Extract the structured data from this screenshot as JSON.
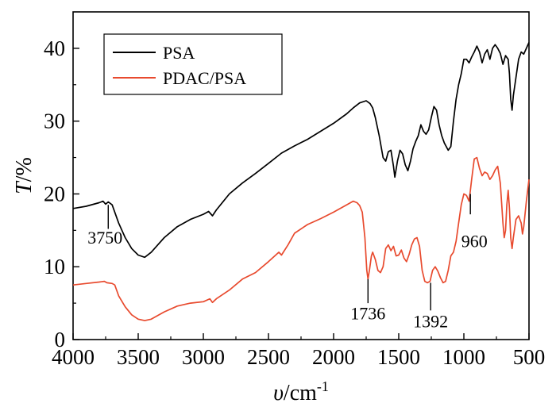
{
  "chart_data": {
    "type": "line",
    "xlabel_symbol": "υ",
    "xlabel_unit": "/cm",
    "xlabel_exp": "-1",
    "ylabel_symbol": "T",
    "ylabel_unit": "/%",
    "xlim": [
      4000,
      500
    ],
    "ylim": [
      0,
      45
    ],
    "xticks": [
      4000,
      3500,
      3000,
      2500,
      2000,
      1500,
      1000,
      500
    ],
    "yticks": [
      0,
      10,
      20,
      30,
      40
    ],
    "legend_position": "top-left",
    "grid": false,
    "series": [
      {
        "name": "PSA",
        "color": "#000000",
        "points": [
          [
            4000,
            18
          ],
          [
            3900,
            18.3
          ],
          [
            3800,
            18.8
          ],
          [
            3770,
            19
          ],
          [
            3750,
            18.6
          ],
          [
            3730,
            18.9
          ],
          [
            3700,
            18.5
          ],
          [
            3650,
            16
          ],
          [
            3600,
            14
          ],
          [
            3550,
            12.5
          ],
          [
            3500,
            11.6
          ],
          [
            3450,
            11.3
          ],
          [
            3400,
            12
          ],
          [
            3350,
            13
          ],
          [
            3300,
            14
          ],
          [
            3200,
            15.5
          ],
          [
            3100,
            16.5
          ],
          [
            3000,
            17.2
          ],
          [
            2960,
            17.6
          ],
          [
            2930,
            17
          ],
          [
            2900,
            17.8
          ],
          [
            2800,
            20
          ],
          [
            2700,
            21.5
          ],
          [
            2600,
            22.8
          ],
          [
            2500,
            24.2
          ],
          [
            2400,
            25.6
          ],
          [
            2300,
            26.6
          ],
          [
            2200,
            27.5
          ],
          [
            2100,
            28.6
          ],
          [
            2000,
            29.7
          ],
          [
            1900,
            31
          ],
          [
            1850,
            31.8
          ],
          [
            1800,
            32.5
          ],
          [
            1750,
            32.8
          ],
          [
            1720,
            32.4
          ],
          [
            1700,
            31.8
          ],
          [
            1680,
            30.5
          ],
          [
            1650,
            28
          ],
          [
            1620,
            25
          ],
          [
            1600,
            24.5
          ],
          [
            1580,
            25.8
          ],
          [
            1560,
            26
          ],
          [
            1540,
            23.8
          ],
          [
            1530,
            22.3
          ],
          [
            1510,
            24.5
          ],
          [
            1490,
            26
          ],
          [
            1470,
            25.5
          ],
          [
            1450,
            24
          ],
          [
            1430,
            23.2
          ],
          [
            1410,
            24.5
          ],
          [
            1390,
            26.2
          ],
          [
            1370,
            27.2
          ],
          [
            1350,
            28
          ],
          [
            1330,
            29.5
          ],
          [
            1310,
            28.6
          ],
          [
            1290,
            28.2
          ],
          [
            1270,
            28.8
          ],
          [
            1250,
            30.5
          ],
          [
            1230,
            32
          ],
          [
            1210,
            31.5
          ],
          [
            1190,
            29.5
          ],
          [
            1170,
            28
          ],
          [
            1150,
            27
          ],
          [
            1120,
            26
          ],
          [
            1100,
            26.5
          ],
          [
            1080,
            30
          ],
          [
            1060,
            33
          ],
          [
            1040,
            35
          ],
          [
            1020,
            36.5
          ],
          [
            1000,
            38.5
          ],
          [
            980,
            38.5
          ],
          [
            960,
            38
          ],
          [
            940,
            38.8
          ],
          [
            920,
            39.5
          ],
          [
            900,
            40.3
          ],
          [
            880,
            39.5
          ],
          [
            860,
            38
          ],
          [
            840,
            39.2
          ],
          [
            820,
            39.8
          ],
          [
            800,
            38.5
          ],
          [
            780,
            40
          ],
          [
            760,
            40.5
          ],
          [
            740,
            40
          ],
          [
            720,
            39.3
          ],
          [
            700,
            37.8
          ],
          [
            680,
            39
          ],
          [
            660,
            38.5
          ],
          [
            650,
            36.5
          ],
          [
            640,
            33
          ],
          [
            630,
            31.5
          ],
          [
            620,
            33.5
          ],
          [
            600,
            36
          ],
          [
            580,
            38.5
          ],
          [
            560,
            39.5
          ],
          [
            540,
            39.2
          ],
          [
            520,
            40
          ],
          [
            500,
            40.8
          ]
        ]
      },
      {
        "name": "PDAC/PSA",
        "color": "#e84a2e",
        "points": [
          [
            4000,
            7.5
          ],
          [
            3900,
            7.7
          ],
          [
            3800,
            7.9
          ],
          [
            3760,
            8
          ],
          [
            3740,
            7.8
          ],
          [
            3700,
            7.7
          ],
          [
            3680,
            7.5
          ],
          [
            3650,
            6
          ],
          [
            3600,
            4.5
          ],
          [
            3550,
            3.4
          ],
          [
            3500,
            2.8
          ],
          [
            3450,
            2.6
          ],
          [
            3400,
            2.8
          ],
          [
            3300,
            3.8
          ],
          [
            3200,
            4.6
          ],
          [
            3100,
            5
          ],
          [
            3000,
            5.2
          ],
          [
            2950,
            5.6
          ],
          [
            2930,
            5.1
          ],
          [
            2900,
            5.6
          ],
          [
            2800,
            6.8
          ],
          [
            2700,
            8.3
          ],
          [
            2600,
            9.2
          ],
          [
            2500,
            10.7
          ],
          [
            2420,
            12
          ],
          [
            2400,
            11.6
          ],
          [
            2350,
            13
          ],
          [
            2300,
            14.6
          ],
          [
            2200,
            15.8
          ],
          [
            2100,
            16.6
          ],
          [
            2000,
            17.5
          ],
          [
            1900,
            18.5
          ],
          [
            1850,
            19
          ],
          [
            1820,
            18.8
          ],
          [
            1800,
            18.4
          ],
          [
            1780,
            17.5
          ],
          [
            1760,
            14
          ],
          [
            1745,
            9.5
          ],
          [
            1736,
            8.3
          ],
          [
            1725,
            9.5
          ],
          [
            1710,
            11.5
          ],
          [
            1700,
            12
          ],
          [
            1680,
            11
          ],
          [
            1660,
            9.5
          ],
          [
            1640,
            9.2
          ],
          [
            1620,
            10
          ],
          [
            1600,
            12.5
          ],
          [
            1580,
            13
          ],
          [
            1560,
            12.2
          ],
          [
            1540,
            12.8
          ],
          [
            1520,
            11.5
          ],
          [
            1500,
            11.6
          ],
          [
            1480,
            12.3
          ],
          [
            1460,
            11.2
          ],
          [
            1440,
            10.7
          ],
          [
            1420,
            11.7
          ],
          [
            1400,
            13
          ],
          [
            1380,
            13.8
          ],
          [
            1360,
            14
          ],
          [
            1340,
            12.8
          ],
          [
            1320,
            9.5
          ],
          [
            1300,
            8
          ],
          [
            1280,
            7.8
          ],
          [
            1260,
            8
          ],
          [
            1240,
            9.5
          ],
          [
            1220,
            10
          ],
          [
            1200,
            9.4
          ],
          [
            1180,
            8.5
          ],
          [
            1160,
            7.8
          ],
          [
            1140,
            8
          ],
          [
            1120,
            9.5
          ],
          [
            1100,
            11.5
          ],
          [
            1080,
            12
          ],
          [
            1060,
            13.5
          ],
          [
            1040,
            16
          ],
          [
            1020,
            18.5
          ],
          [
            1000,
            20
          ],
          [
            980,
            19.8
          ],
          [
            960,
            19
          ],
          [
            940,
            22
          ],
          [
            920,
            24.8
          ],
          [
            900,
            25
          ],
          [
            880,
            23.5
          ],
          [
            860,
            22.5
          ],
          [
            840,
            23
          ],
          [
            820,
            22.8
          ],
          [
            800,
            22
          ],
          [
            780,
            22.5
          ],
          [
            760,
            23.3
          ],
          [
            740,
            23.8
          ],
          [
            720,
            21.5
          ],
          [
            700,
            16
          ],
          [
            690,
            14
          ],
          [
            680,
            15
          ],
          [
            670,
            18.5
          ],
          [
            660,
            20.5
          ],
          [
            650,
            18
          ],
          [
            640,
            14
          ],
          [
            630,
            12.5
          ],
          [
            620,
            14
          ],
          [
            600,
            16.5
          ],
          [
            580,
            17
          ],
          [
            560,
            16
          ],
          [
            550,
            14.5
          ],
          [
            540,
            15.5
          ],
          [
            520,
            19
          ],
          [
            500,
            22
          ]
        ]
      }
    ],
    "annotations": [
      {
        "label": "3750",
        "series": 0,
        "x": 3730,
        "line_from": 18.5,
        "line_to": 15.2,
        "text_y": 13.2,
        "text_dx": -4
      },
      {
        "label": "1736",
        "series": 1,
        "x": 1736,
        "line_from": 8.3,
        "line_to": 5.0,
        "text_y": 2.8,
        "text_dx": 0
      },
      {
        "label": "1392",
        "series": 1,
        "x": 1255,
        "line_from": 7.8,
        "line_to": 4.0,
        "text_y": 1.7,
        "text_dx": 0
      },
      {
        "label": "960",
        "series": 1,
        "x": 950,
        "line_from": 20,
        "line_to": 17.2,
        "text_y": 12.7,
        "text_dx": 5
      }
    ]
  }
}
